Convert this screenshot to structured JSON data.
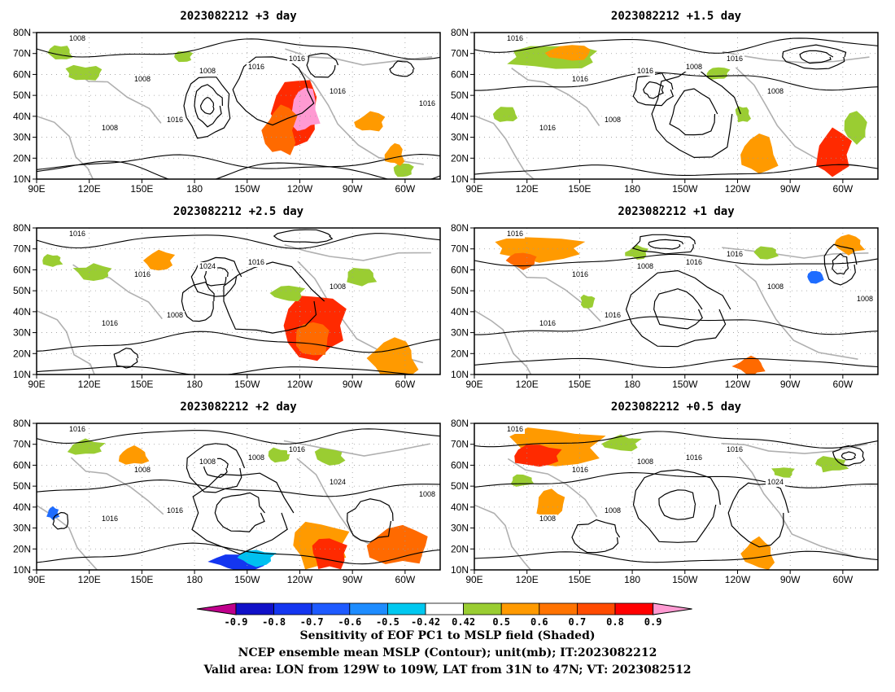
{
  "panels": [
    {
      "title": "2023082212  +3 day",
      "contour_labels": [
        "1008",
        "1008",
        "1008",
        "1008",
        "1016",
        "1016",
        "1016",
        "1016",
        "1016"
      ]
    },
    {
      "title": "2023082212  +1.5 day",
      "contour_labels": [
        "1016",
        "1016",
        "1016",
        "1016",
        "1008",
        "1008",
        "1008",
        "1016"
      ]
    },
    {
      "title": "2023082212  +2.5 day",
      "contour_labels": [
        "1016",
        "1016",
        "1016",
        "1024",
        "1016",
        "1008",
        "1008"
      ]
    },
    {
      "title": "2023082212  +1 day",
      "contour_labels": [
        "1016",
        "1016",
        "1016",
        "1008",
        "1016",
        "1008",
        "1016",
        "1016",
        "1008"
      ]
    },
    {
      "title": "2023082212  +2 day",
      "contour_labels": [
        "1016",
        "1008",
        "1016",
        "1008",
        "1008",
        "1024",
        "1016",
        "1016",
        "1008"
      ]
    },
    {
      "title": "2023082212  +0.5 day",
      "contour_labels": [
        "1016",
        "1016",
        "1008",
        "1008",
        "1016",
        "1024",
        "1008",
        "1016"
      ]
    }
  ],
  "map_axes": {
    "lon_ticks": [
      "90E",
      "120E",
      "150E",
      "180",
      "150W",
      "120W",
      "90W",
      "60W"
    ],
    "lat_ticks": [
      "10N",
      "20N",
      "30N",
      "40N",
      "50N",
      "60N",
      "70N",
      "80N"
    ],
    "lon_range": [
      90,
      320
    ],
    "lat_range": [
      10,
      80
    ]
  },
  "colorbar": {
    "ticks": [
      "-0.9",
      "-0.8",
      "-0.7",
      "-0.6",
      "-0.5",
      "-0.42",
      "0.42",
      "0.5",
      "0.6",
      "0.7",
      "0.8",
      "0.9"
    ],
    "colors": [
      "#c0008c",
      "#1010c8",
      "#1436f0",
      "#1e5aff",
      "#1e8cff",
      "#00c8f0",
      "#ffffff",
      "#9acd32",
      "#ff9a00",
      "#ff7300",
      "#ff4b00",
      "#ff0000",
      "#ff9ad2"
    ]
  },
  "caption": {
    "line1": "Sensitivity of EOF PC1 to MSLP field (Shaded)",
    "line2": "NCEP ensemble mean MSLP (Contour); unit(mb); IT:2023082212",
    "line3": "Valid area: LON from 129W to 109W, LAT from 31N to 47N; VT: 2023082512"
  }
}
